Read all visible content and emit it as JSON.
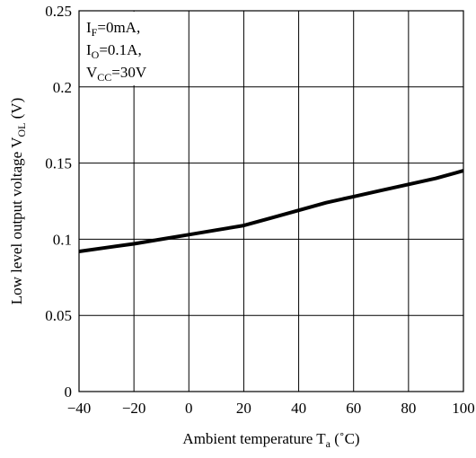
{
  "chart_data": {
    "type": "line",
    "xlabel_main": "Ambient temperature T",
    "xlabel_sub": "a",
    "xlabel_unit": " (˚C)",
    "ylabel_main": "Low level output voltage V",
    "ylabel_sub": "OL",
    "ylabel_unit": " (V)",
    "xlim": [
      -40,
      100
    ],
    "ylim": [
      0,
      0.25
    ],
    "grid": true,
    "x_ticks": [
      -40,
      -20,
      0,
      20,
      40,
      60,
      80,
      100
    ],
    "x_tick_labels": [
      "−40",
      "−20",
      "0",
      "20",
      "40",
      "60",
      "80",
      "100"
    ],
    "y_ticks": [
      0,
      0.05,
      0.1,
      0.15,
      0.2,
      0.25
    ],
    "y_tick_labels": [
      "0",
      "0.05",
      "0.1",
      "0.15",
      "0.2",
      "0.25"
    ],
    "annotation": [
      {
        "main": "I",
        "sub": "F",
        "rest": "=0mA,"
      },
      {
        "main": "I",
        "sub": "O",
        "rest": "=0.1A,"
      },
      {
        "main": "V",
        "sub": "CC",
        "rest": "=30V"
      }
    ],
    "series": [
      {
        "x": [
          -40,
          -30,
          -20,
          -10,
          0,
          10,
          20,
          30,
          40,
          50,
          60,
          70,
          80,
          90,
          100
        ],
        "y": [
          0.092,
          0.0945,
          0.097,
          0.1,
          0.103,
          0.106,
          0.109,
          0.114,
          0.119,
          0.124,
          0.128,
          0.132,
          0.136,
          0.14,
          0.145
        ]
      }
    ]
  }
}
